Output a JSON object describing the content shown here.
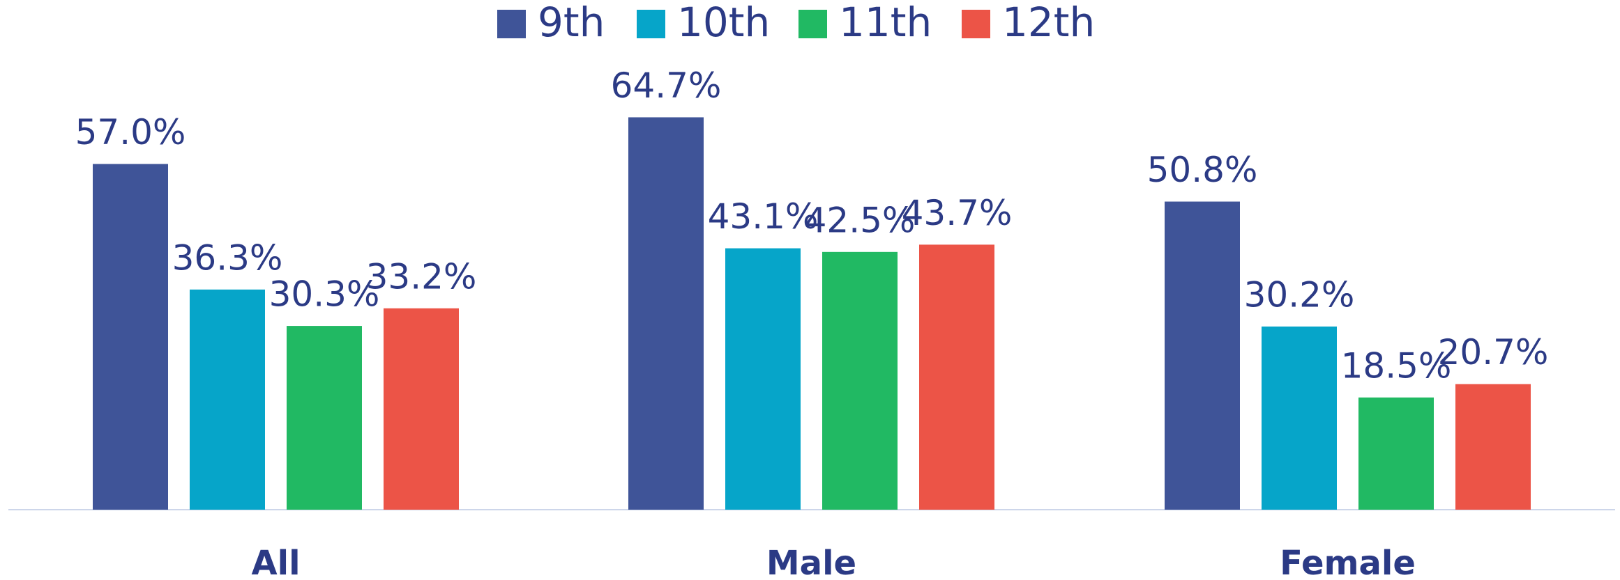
{
  "chart_data": {
    "type": "bar",
    "categories": [
      "All",
      "Male",
      "Female"
    ],
    "series": [
      {
        "name": "9th",
        "color": "#3f5498",
        "values": [
          57.0,
          64.7,
          50.8
        ],
        "value_labels": [
          "57.0%",
          "64.7%",
          "50.8%"
        ]
      },
      {
        "name": "10th",
        "color": "#06a5c9",
        "values": [
          36.3,
          43.1,
          30.2
        ],
        "value_labels": [
          "36.3%",
          "43.1%",
          "30.2%"
        ]
      },
      {
        "name": "11th",
        "color": "#21b963",
        "values": [
          30.3,
          42.5,
          18.5
        ],
        "value_labels": [
          "30.3%",
          "42.5%",
          "18.5%"
        ]
      },
      {
        "name": "12th",
        "color": "#ec5447",
        "values": [
          33.2,
          43.7,
          20.7
        ],
        "value_labels": [
          "33.2%",
          "43.7%",
          "20.7%"
        ]
      }
    ],
    "legend": "top"
  }
}
